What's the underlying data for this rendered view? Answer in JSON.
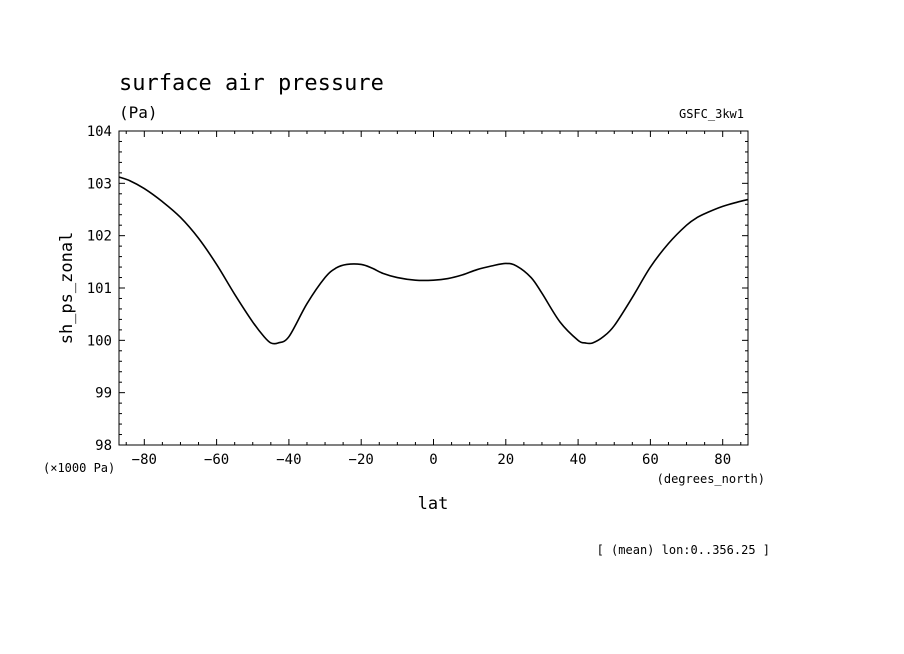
{
  "chart_data": {
    "type": "line",
    "title": "surface air pressure",
    "units": "(Pa)",
    "model_label": "GSFC_3kw1",
    "ylabel": "sh_ps_zonal",
    "yscale_label": "(×1000 Pa)",
    "xlabel": "lat",
    "xunits": "(degrees_north)",
    "footnote": "[ (mean) lon:0..356.25 ]",
    "xlim": [
      -87,
      87
    ],
    "ylim": [
      98,
      104
    ],
    "xticks": [
      -80,
      -60,
      -40,
      -20,
      0,
      20,
      40,
      60,
      80
    ],
    "yticks": [
      98,
      99,
      100,
      101,
      102,
      103,
      104
    ],
    "grid": false,
    "line_color": "#000000",
    "series": [
      {
        "x": [
          -87,
          -84,
          -80,
          -75,
          -70,
          -65,
          -60,
          -55,
          -50,
          -47,
          -45,
          -43,
          -40,
          -35,
          -30,
          -27,
          -24,
          -20,
          -17,
          -14,
          -10,
          -5,
          0,
          4,
          8,
          12,
          16,
          20,
          23,
          27,
          30,
          35,
          40,
          42,
          44,
          47,
          50,
          55,
          60,
          65,
          70,
          73,
          76,
          80,
          84,
          87
        ],
        "y": [
          103.12,
          103.05,
          102.9,
          102.65,
          102.35,
          101.95,
          101.45,
          100.88,
          100.35,
          100.08,
          99.95,
          99.95,
          100.07,
          100.7,
          101.2,
          101.38,
          101.45,
          101.45,
          101.38,
          101.28,
          101.2,
          101.15,
          101.15,
          101.18,
          101.25,
          101.35,
          101.42,
          101.47,
          101.42,
          101.2,
          100.9,
          100.35,
          100.0,
          99.95,
          99.95,
          100.07,
          100.28,
          100.82,
          101.4,
          101.85,
          102.2,
          102.35,
          102.45,
          102.56,
          102.64,
          102.69
        ]
      }
    ]
  }
}
